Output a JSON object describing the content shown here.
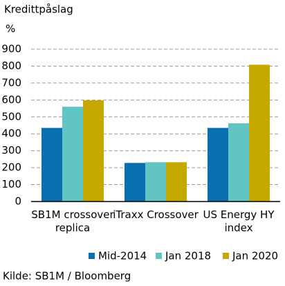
{
  "chart_data": {
    "type": "bar",
    "title": "Kredittpåslag",
    "y_label": "%",
    "categories": [
      "SB1M crossover replica",
      "iTraxx Crossover",
      "US Energy HY index"
    ],
    "series": [
      {
        "name": "Mid-2014",
        "color": "#0a6fae",
        "values": [
          435,
          228,
          435
        ]
      },
      {
        "name": "Jan 2018",
        "color": "#62c4c3",
        "values": [
          560,
          232,
          462
        ]
      },
      {
        "name": "Jan 2020",
        "color": "#c4a800",
        "values": [
          598,
          232,
          808
        ]
      }
    ],
    "ylim": [
      0,
      900
    ],
    "yticks": [
      0,
      100,
      200,
      300,
      400,
      500,
      600,
      700,
      800,
      900
    ],
    "grid": true,
    "source": "Kilde: SB1M / Bloomberg"
  }
}
